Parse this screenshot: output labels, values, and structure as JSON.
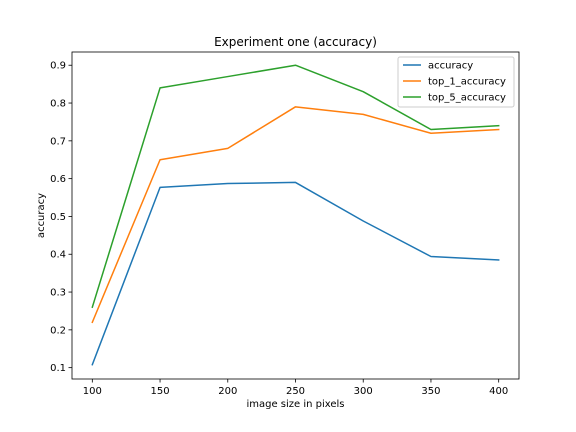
{
  "chart_data": {
    "type": "line",
    "title": "Experiment one (accuracy)",
    "xlabel": "image size in pixels",
    "ylabel": "accuracy",
    "x": [
      100,
      150,
      200,
      250,
      300,
      350,
      400
    ],
    "xlim": [
      85,
      415
    ],
    "ylim": [
      0.07,
      0.935
    ],
    "xticks": [
      100,
      150,
      200,
      250,
      300,
      350,
      400
    ],
    "xtick_labels": [
      "100",
      "150",
      "200",
      "250",
      "300",
      "350",
      "400"
    ],
    "yticks": [
      0.1,
      0.2,
      0.3,
      0.4,
      0.5,
      0.6,
      0.7,
      0.8,
      0.9
    ],
    "ytick_labels": [
      "0.1",
      "0.2",
      "0.3",
      "0.4",
      "0.5",
      "0.6",
      "0.7",
      "0.8",
      "0.9"
    ],
    "grid": false,
    "legend_position": "top-right",
    "series": [
      {
        "name": "accuracy",
        "color": "#1f77b4",
        "values": [
          0.108,
          0.577,
          0.587,
          0.59,
          0.488,
          0.394,
          0.385
        ]
      },
      {
        "name": "top_1_accuracy",
        "color": "#ff7f0e",
        "values": [
          0.22,
          0.65,
          0.68,
          0.79,
          0.77,
          0.72,
          0.73
        ]
      },
      {
        "name": "top_5_accuracy",
        "color": "#2ca02c",
        "values": [
          0.26,
          0.84,
          0.87,
          0.9,
          0.83,
          0.73,
          0.74
        ]
      }
    ]
  }
}
